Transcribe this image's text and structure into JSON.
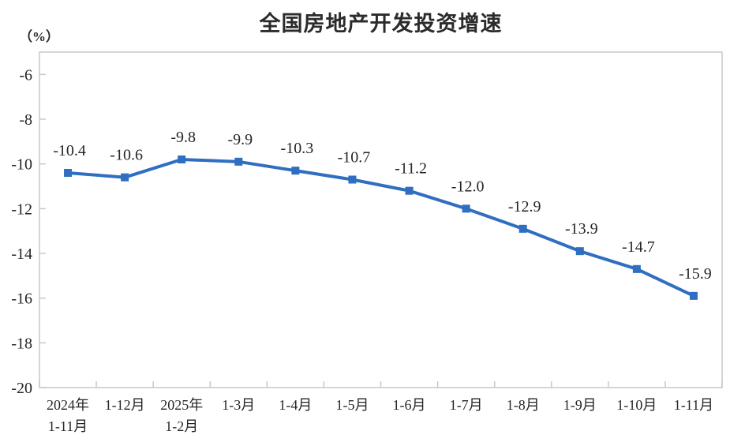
{
  "page": {
    "title": "全国房地产开发投资增速",
    "unit_label": "（%）"
  },
  "chart_data": {
    "type": "line",
    "title": "全国房地产开发投资增速",
    "ylabel": "（%）",
    "xlabel": "",
    "categories": [
      [
        "2024年",
        "1-11月"
      ],
      [
        "1-12月"
      ],
      [
        "2025年",
        "1-2月"
      ],
      [
        "1-3月"
      ],
      [
        "1-4月"
      ],
      [
        "1-5月"
      ],
      [
        "1-6月"
      ],
      [
        "1-7月"
      ],
      [
        "1-8月"
      ],
      [
        "1-9月"
      ],
      [
        "1-10月"
      ],
      [
        "1-11月"
      ]
    ],
    "series": [
      {
        "name": "全国房地产开发投资增速",
        "values": [
          -10.4,
          -10.6,
          -9.8,
          -9.9,
          -10.3,
          -10.7,
          -11.2,
          -12.0,
          -12.9,
          -13.9,
          -14.7,
          -15.9
        ]
      }
    ],
    "data_labels": [
      "-10.4",
      "-10.6",
      "-9.8",
      "-9.9",
      "-10.3",
      "-10.7",
      "-11.2",
      "-12.0",
      "-12.9",
      "-13.9",
      "-14.7",
      "-15.9"
    ],
    "y_axis": {
      "min": -20,
      "max": -5,
      "tick_step": 2,
      "tick_labels": [
        "-6",
        "-8",
        "-10",
        "-12",
        "-14",
        "-16",
        "-18",
        "-20"
      ]
    },
    "grid": false,
    "legend": false,
    "marker": "square",
    "colors": {
      "line": "#2F6EC0",
      "marker": "#2F6EC0",
      "axis": "#c8c8c8",
      "text": "#262626"
    }
  }
}
